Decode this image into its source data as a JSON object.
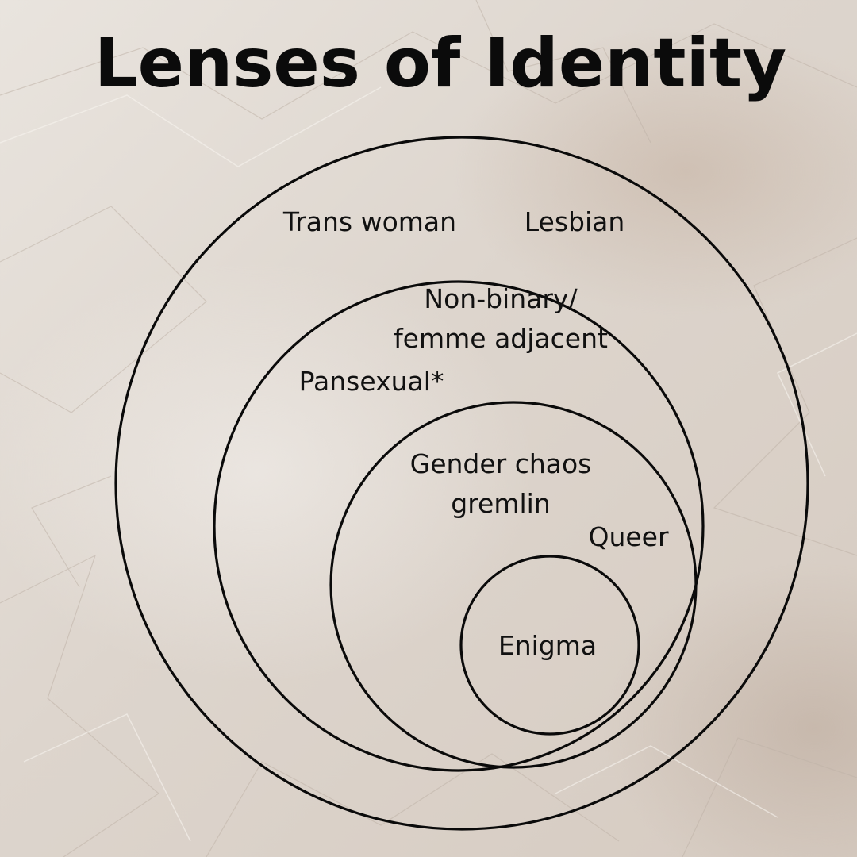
{
  "title": "Lenses of Identity",
  "rings": [
    {
      "labels": [
        "Trans woman",
        "Lesbian"
      ]
    },
    {
      "labels": [
        "Non-binary/\nfemme adjacent",
        "Pansexual*"
      ]
    },
    {
      "labels": [
        "Gender chaos\ngremlin",
        "Queer"
      ]
    },
    {
      "labels": [
        "Enigma"
      ]
    }
  ]
}
